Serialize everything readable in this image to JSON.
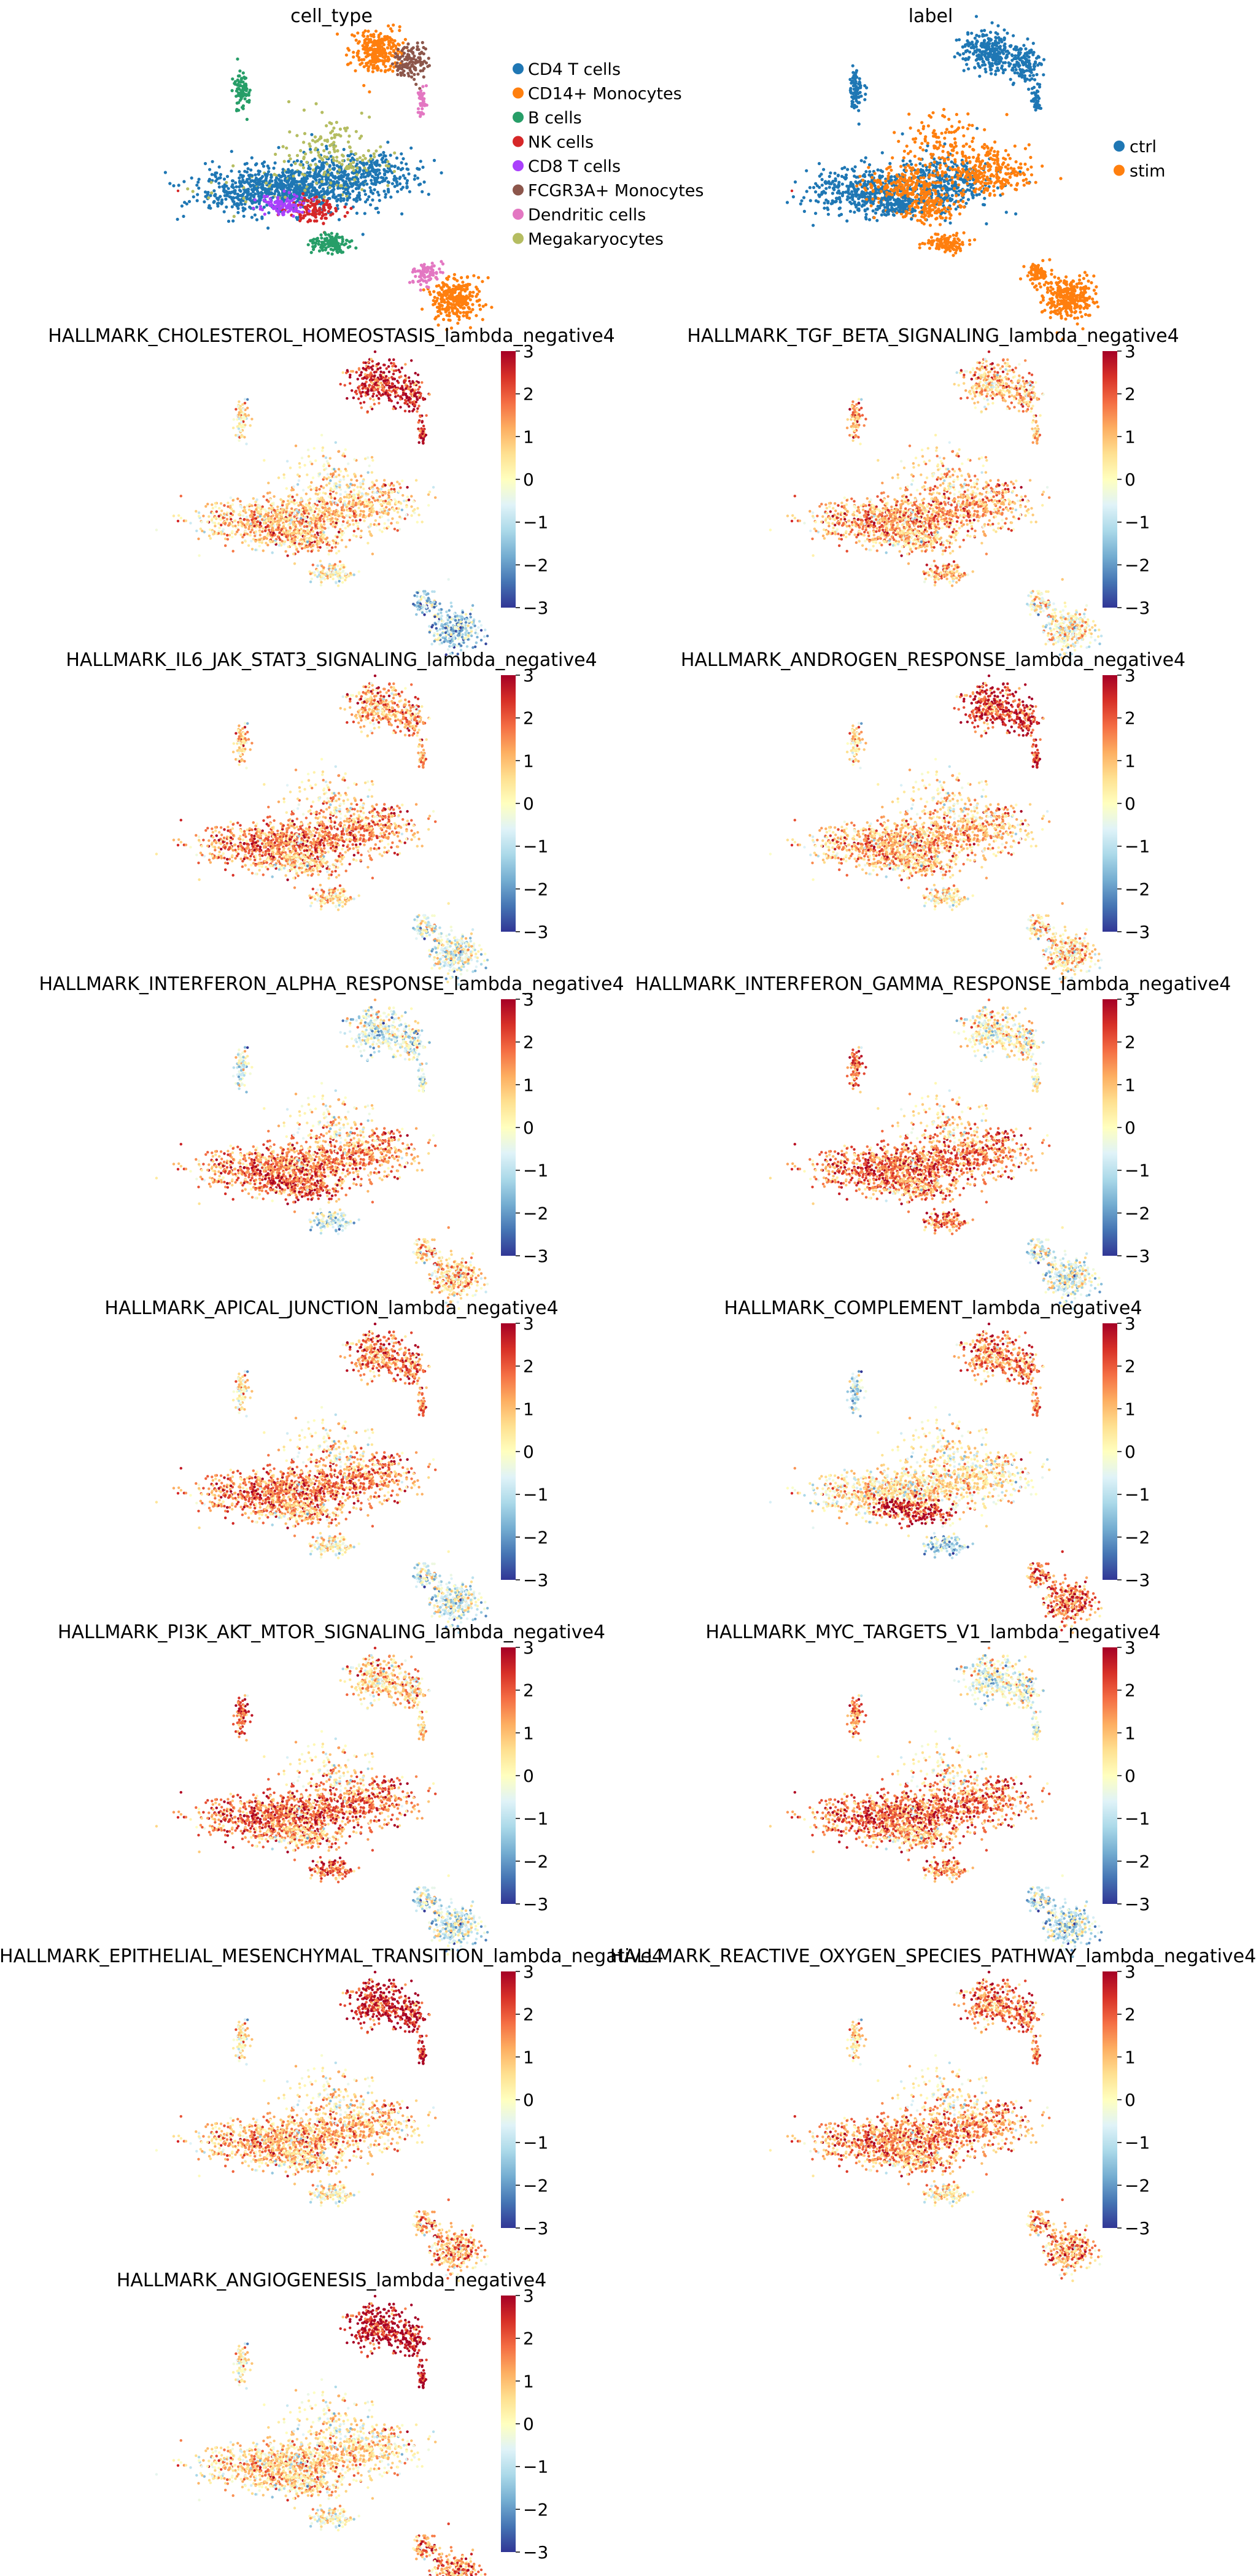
{
  "colors": {
    "ctrl": "#1f77b4",
    "stim": "#ff7f0e",
    "colormap": [
      "#313695",
      "#4575b4",
      "#74add1",
      "#abd9e9",
      "#e0f3f8",
      "#ffffbf",
      "#fee090",
      "#fdae61",
      "#f46d43",
      "#d73027",
      "#a50026"
    ]
  },
  "chart_data": [
    {
      "type": "scatter",
      "title": "cell_type",
      "color_by": "category",
      "legend_placement": "right",
      "legend": [
        {
          "label": "CD4 T cells",
          "color": "#1f77b4"
        },
        {
          "label": "CD14+ Monocytes",
          "color": "#ff7f0e"
        },
        {
          "label": "B cells",
          "color": "#279e68"
        },
        {
          "label": "NK cells",
          "color": "#d62728"
        },
        {
          "label": "CD8 T cells",
          "color": "#aa40fc"
        },
        {
          "label": "FCGR3A+ Monocytes",
          "color": "#8c564b"
        },
        {
          "label": "Dendritic cells",
          "color": "#e377c2"
        },
        {
          "label": "Megakaryocytes",
          "color": "#b5bd61"
        }
      ]
    },
    {
      "type": "scatter",
      "title": "label",
      "color_by": "category",
      "legend_placement": "right",
      "legend": [
        {
          "label": "ctrl",
          "color": "#1f77b4"
        },
        {
          "label": "stim",
          "color": "#ff7f0e"
        }
      ]
    },
    {
      "type": "scatter",
      "title": "HALLMARK_CHOLESTEROL_HOMEOSTASIS_lambda_negative4",
      "color_by": "score",
      "colorbar": {
        "range": [
          -3,
          3
        ],
        "ticks": [
          "3",
          "2",
          "1",
          "0",
          "−1",
          "−2",
          "−3"
        ]
      },
      "levels": {
        "cd4": 0.8,
        "cd14": -1.2,
        "bcell": 0.3,
        "nk": 1.0,
        "fcgr": 2.5,
        "mk": 0.2
      }
    },
    {
      "type": "scatter",
      "title": "HALLMARK_TGF_BETA_SIGNALING_lambda_negative4",
      "color_by": "score",
      "colorbar": {
        "range": [
          -3,
          3
        ],
        "ticks": [
          "3",
          "2",
          "1",
          "0",
          "−1",
          "−2",
          "−3"
        ]
      },
      "levels": {
        "cd4": 1.2,
        "cd14": 0.2,
        "bcell": 1.2,
        "nk": 0.7,
        "fcgr": 0.9,
        "mk": 0.6
      }
    },
    {
      "type": "scatter",
      "title": "HALLMARK_IL6_JAK_STAT3_SIGNALING_lambda_negative4",
      "color_by": "score",
      "colorbar": {
        "range": [
          -3,
          3
        ],
        "ticks": [
          "3",
          "2",
          "1",
          "0",
          "−1",
          "−2",
          "−3"
        ]
      },
      "levels": {
        "cd4": 1.5,
        "cd14": -0.3,
        "bcell": 0.8,
        "nk": 0.6,
        "fcgr": 1.2,
        "mk": 0.4
      }
    },
    {
      "type": "scatter",
      "title": "HALLMARK_ANDROGEN_RESPONSE_lambda_negative4",
      "color_by": "score",
      "colorbar": {
        "range": [
          -3,
          3
        ],
        "ticks": [
          "3",
          "2",
          "1",
          "0",
          "−1",
          "−2",
          "−3"
        ]
      },
      "levels": {
        "cd4": 1.0,
        "cd14": 0.6,
        "bcell": 0.5,
        "nk": 0.8,
        "fcgr": 2.3,
        "mk": 0.3
      }
    },
    {
      "type": "scatter",
      "title": "HALLMARK_INTERFERON_ALPHA_RESPONSE_lambda_negative4",
      "color_by": "score",
      "colorbar": {
        "range": [
          -3,
          3
        ],
        "ticks": [
          "3",
          "2",
          "1",
          "0",
          "−1",
          "−2",
          "−3"
        ]
      },
      "levels": {
        "cd4": 1.5,
        "cd14": 0.8,
        "bcell": -0.6,
        "nk": 2.0,
        "fcgr": -0.5,
        "mk": 0.2
      }
    },
    {
      "type": "scatter",
      "title": "HALLMARK_INTERFERON_GAMMA_RESPONSE_lambda_negative4",
      "color_by": "score",
      "colorbar": {
        "range": [
          -3,
          3
        ],
        "ticks": [
          "3",
          "2",
          "1",
          "0",
          "−1",
          "−2",
          "−3"
        ]
      },
      "levels": {
        "cd4": 1.7,
        "cd14": -0.4,
        "bcell": 1.8,
        "nk": 1.2,
        "fcgr": 0.1,
        "mk": 0.5
      }
    },
    {
      "type": "scatter",
      "title": "HALLMARK_APICAL_JUNCTION_lambda_negative4",
      "color_by": "score",
      "colorbar": {
        "range": [
          -3,
          3
        ],
        "ticks": [
          "3",
          "2",
          "1",
          "0",
          "−1",
          "−2",
          "−3"
        ]
      },
      "levels": {
        "cd4": 1.6,
        "cd14": -0.5,
        "bcell": 0.3,
        "nk": 0.8,
        "fcgr": 1.6,
        "mk": 0.2
      }
    },
    {
      "type": "scatter",
      "title": "HALLMARK_COMPLEMENT_lambda_negative4",
      "color_by": "score",
      "colorbar": {
        "range": [
          -3,
          3
        ],
        "ticks": [
          "3",
          "2",
          "1",
          "0",
          "−1",
          "−2",
          "−3"
        ]
      },
      "levels": {
        "cd4": 0.4,
        "cd14": 1.8,
        "bcell": -1.0,
        "nk": 2.6,
        "fcgr": 1.5,
        "mk": 0.2
      }
    },
    {
      "type": "scatter",
      "title": "HALLMARK_PI3K_AKT_MTOR_SIGNALING_lambda_negative4",
      "color_by": "score",
      "colorbar": {
        "range": [
          -3,
          3
        ],
        "ticks": [
          "3",
          "2",
          "1",
          "0",
          "−1",
          "−2",
          "−3"
        ]
      },
      "levels": {
        "cd4": 1.8,
        "cd14": -0.6,
        "bcell": 2.0,
        "nk": 0.8,
        "fcgr": 0.7,
        "mk": 0.3
      }
    },
    {
      "type": "scatter",
      "title": "HALLMARK_MYC_TARGETS_V1_lambda_negative4",
      "color_by": "score",
      "colorbar": {
        "range": [
          -3,
          3
        ],
        "ticks": [
          "3",
          "2",
          "1",
          "0",
          "−1",
          "−2",
          "−3"
        ]
      },
      "levels": {
        "cd4": 1.8,
        "cd14": -0.8,
        "bcell": 1.5,
        "nk": 0.9,
        "fcgr": -0.3,
        "mk": 0.2
      }
    },
    {
      "type": "scatter",
      "title": "HALLMARK_EPITHELIAL_MESENCHYMAL_TRANSITION_lambda_negative4",
      "color_by": "score",
      "colorbar": {
        "range": [
          -3,
          3
        ],
        "ticks": [
          "3",
          "2",
          "1",
          "0",
          "−1",
          "−2",
          "−3"
        ]
      },
      "levels": {
        "cd4": 1.0,
        "cd14": 1.2,
        "bcell": 0.3,
        "nk": 0.6,
        "fcgr": 2.6,
        "mk": 0.2
      }
    },
    {
      "type": "scatter",
      "title": "HALLMARK_REACTIVE_OXYGEN_SPECIES_PATHWAY_lambda_negative4",
      "color_by": "score",
      "colorbar": {
        "range": [
          -3,
          3
        ],
        "ticks": [
          "3",
          "2",
          "1",
          "0",
          "−1",
          "−2",
          "−3"
        ]
      },
      "levels": {
        "cd4": 1.4,
        "cd14": 1.3,
        "bcell": 0.5,
        "nk": 1.0,
        "fcgr": 1.6,
        "mk": 0.2
      }
    },
    {
      "type": "scatter",
      "title": "HALLMARK_ANGIOGENESIS_lambda_negative4",
      "color_by": "score",
      "colorbar": {
        "range": [
          -3,
          3
        ],
        "ticks": [
          "3",
          "2",
          "1",
          "0",
          "−1",
          "−2",
          "−3"
        ]
      },
      "levels": {
        "cd4": 0.6,
        "cd14": 1.5,
        "bcell": 0.2,
        "nk": 0.5,
        "fcgr": 2.8,
        "mk": 0.1
      }
    }
  ]
}
